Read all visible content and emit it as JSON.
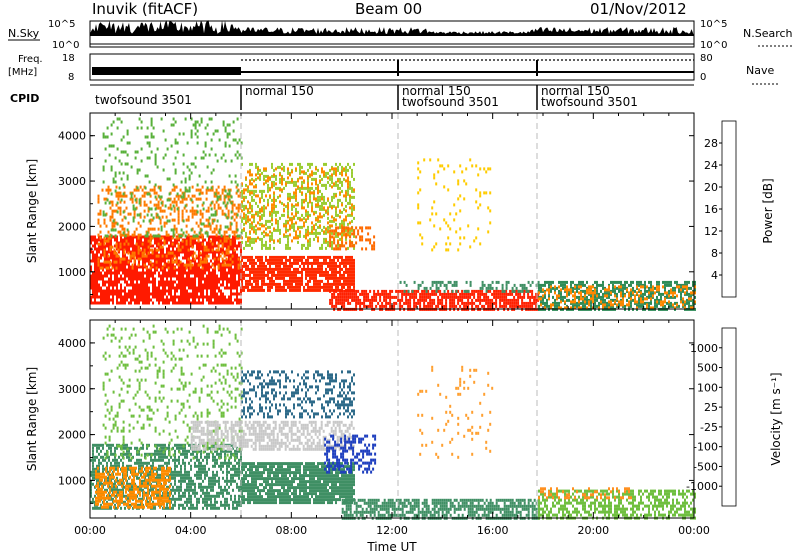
{
  "header": {
    "station": "Inuvik (fitACF)",
    "beam": "Beam 00",
    "date": "01/Nov/2012"
  },
  "summary_panels": {
    "nsky_label": "N.Sky",
    "nsky_ticks": [
      "10^5",
      "10^0"
    ],
    "nsearch_label": "N.Search",
    "nsearch_ticks": [
      "10^5",
      "10^0"
    ],
    "freq_label_line1": "Freq.",
    "freq_label_line2": "[MHz]",
    "freq_ticks": [
      "18",
      "8"
    ],
    "nave_label": "Nave",
    "nave_ticks": [
      "80",
      "0"
    ],
    "cpid_label": "CPID",
    "cpid_segments": [
      {
        "lines": [
          "twofsound 3501"
        ]
      },
      {
        "lines": [
          "normal 150"
        ]
      },
      {
        "lines": [
          "normal 150",
          "twofsound 3501"
        ]
      },
      {
        "lines": [
          "normal 150",
          "twofsound 3501"
        ]
      }
    ]
  },
  "chart_data": [
    {
      "type": "heatmap",
      "panel": "power",
      "ylabel": "Slant Range [km]",
      "yticks": [
        "1000",
        "2000",
        "3000",
        "4000"
      ],
      "ylim": [
        180,
        4500
      ],
      "xlim_hours": [
        0,
        24
      ],
      "colorbar_label": "Power [dB]",
      "colorbar_ticks": [
        "4",
        "8",
        "12",
        "16",
        "20",
        "24",
        "28"
      ],
      "colorbar_colors": [
        "#0000ff",
        "#2c4fa6",
        "#3f8f64",
        "#73bf3f",
        "#e8d400",
        "#ff9f1c",
        "#ff5a00",
        "#ff0000"
      ],
      "regions": [
        {
          "t0": 0.0,
          "t1": 6.0,
          "r0": 300,
          "r1": 1800,
          "color": "#ff1a00",
          "density": 0.8
        },
        {
          "t0": 0.3,
          "t1": 6.0,
          "r0": 1100,
          "r1": 2900,
          "color": "#ff7a00",
          "density": 0.3
        },
        {
          "t0": 0.5,
          "t1": 6.0,
          "r0": 1800,
          "r1": 4400,
          "color": "#58b03a",
          "density": 0.12
        },
        {
          "t0": 6.0,
          "t1": 10.5,
          "r0": 600,
          "r1": 1350,
          "color": "#ff2a00",
          "density": 0.8
        },
        {
          "t0": 6.0,
          "t1": 10.5,
          "r0": 1500,
          "r1": 3400,
          "color": "#9acd32",
          "density": 0.35
        },
        {
          "t0": 6.0,
          "t1": 10.5,
          "r0": 1700,
          "r1": 3300,
          "color": "#ff8c00",
          "density": 0.2
        },
        {
          "t0": 9.5,
          "t1": 11.3,
          "r0": 1500,
          "r1": 2000,
          "color": "#ff6a00",
          "density": 0.45
        },
        {
          "t0": 9.5,
          "t1": 17.8,
          "r0": 180,
          "r1": 600,
          "color": "#ff2000",
          "density": 0.75
        },
        {
          "t0": 12.3,
          "t1": 17.8,
          "r0": 600,
          "r1": 800,
          "color": "#3f8f64",
          "density": 0.3
        },
        {
          "t0": 13.0,
          "t1": 16.0,
          "r0": 1500,
          "r1": 3500,
          "color": "#ffcc00",
          "density": 0.07
        },
        {
          "t0": 17.8,
          "t1": 24.0,
          "r0": 200,
          "r1": 800,
          "color": "#2e8b57",
          "density": 0.6
        },
        {
          "t0": 17.8,
          "t1": 24.0,
          "r0": 200,
          "r1": 700,
          "color": "#ff8800",
          "density": 0.3
        }
      ]
    },
    {
      "type": "heatmap",
      "panel": "velocity",
      "ylabel": "Slant Range [km]",
      "xlabel": "Time UT",
      "yticks": [
        "1000",
        "2000",
        "3000",
        "4000"
      ],
      "xticks": [
        "00:00",
        "04:00",
        "08:00",
        "12:00",
        "16:00",
        "20:00",
        "00:00"
      ],
      "ylim": [
        180,
        4500
      ],
      "xlim_hours": [
        0,
        24
      ],
      "colorbar_label": "Velocity [m s⁻¹]",
      "colorbar_ticks": [
        "1000",
        "500",
        "100",
        "25",
        "-25",
        "-100",
        "-500",
        "-1000"
      ],
      "colorbar_colors": [
        "#1f3fbf",
        "#2e6b8a",
        "#3f8f64",
        "#6fbf3f",
        "#c8c8c8",
        "#ffa030",
        "#ff7000",
        "#ff3000",
        "#ff0000"
      ],
      "regions": [
        {
          "t0": 0.0,
          "t1": 6.0,
          "r0": 400,
          "r1": 1800,
          "color": "#3f8f64",
          "density": 0.6
        },
        {
          "t0": 0.2,
          "t1": 3.2,
          "r0": 400,
          "r1": 1300,
          "color": "#ff8c00",
          "density": 0.6
        },
        {
          "t0": 0.5,
          "t1": 6.0,
          "r0": 1500,
          "r1": 4400,
          "color": "#6fbf3f",
          "density": 0.14
        },
        {
          "t0": 6.0,
          "t1": 10.5,
          "r0": 500,
          "r1": 1400,
          "color": "#3f8f64",
          "density": 0.85
        },
        {
          "t0": 4.0,
          "t1": 10.5,
          "r0": 1700,
          "r1": 2300,
          "color": "#c8c8c8",
          "density": 0.6
        },
        {
          "t0": 6.0,
          "t1": 10.5,
          "r0": 2400,
          "r1": 3400,
          "color": "#2e6b8a",
          "density": 0.35
        },
        {
          "t0": 9.3,
          "t1": 11.3,
          "r0": 1200,
          "r1": 2000,
          "color": "#1f3fbf",
          "density": 0.45
        },
        {
          "t0": 10.0,
          "t1": 17.8,
          "r0": 180,
          "r1": 600,
          "color": "#3f8f64",
          "density": 0.7
        },
        {
          "t0": 13.0,
          "t1": 16.0,
          "r0": 1500,
          "r1": 3500,
          "color": "#ffa030",
          "density": 0.07
        },
        {
          "t0": 17.8,
          "t1": 24.0,
          "r0": 200,
          "r1": 800,
          "color": "#6fbf3f",
          "density": 0.55
        },
        {
          "t0": 17.8,
          "t1": 21.5,
          "r0": 600,
          "r1": 850,
          "color": "#ff9020",
          "density": 0.3
        }
      ]
    }
  ]
}
